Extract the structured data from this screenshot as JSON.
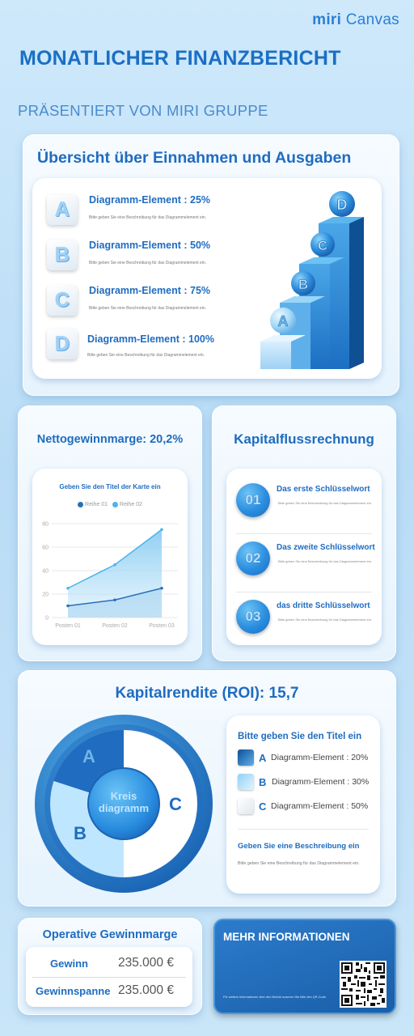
{
  "brand": {
    "prefix": "miri",
    "suffix": "Canvas"
  },
  "header": {
    "title": "MONATLICHER FINANZBERICHT",
    "subtitle": "PRÄSENTIERT VON MIRI GRUPPE"
  },
  "overview": {
    "title": "Übersicht über Einnahmen und Ausgaben",
    "items": [
      {
        "letter": "A",
        "title": "Diagramm-Element : 25%",
        "desc": "Bitte geben Sie eine Beschreibung für das Diagrammelement ein."
      },
      {
        "letter": "B",
        "title": "Diagramm-Element : 50%",
        "desc": "Bitte geben Sie eine Beschreibung für das Diagrammelement ein."
      },
      {
        "letter": "C",
        "title": "Diagramm-Element : 75%",
        "desc": "Bitte geben Sie eine Beschreibung für das Diagrammelement ein."
      },
      {
        "letter": "D",
        "title": "Diagramm-Element : 100%",
        "desc": "Bitte geben Sie eine Beschreibung für das Diagrammelement ein."
      }
    ],
    "stair_letters": [
      "A",
      "B",
      "C",
      "D"
    ]
  },
  "net_margin": {
    "title": "Nettogewinnmarge: 20,2%"
  },
  "chart_data": {
    "type": "area",
    "title": "Geben Sie den Titel der Karte ein",
    "categories": [
      "Posten 01",
      "Posten 02",
      "Posten 03"
    ],
    "series": [
      {
        "name": "Reihe 01",
        "values": [
          10,
          15,
          25
        ],
        "color": "#2a6fb8"
      },
      {
        "name": "Reihe 02",
        "values": [
          25,
          45,
          75
        ],
        "color": "#4fb3e8"
      }
    ],
    "yticks": [
      0,
      20,
      40,
      60,
      80
    ],
    "ylim": [
      0,
      80
    ],
    "grid": true,
    "legend": "top-center"
  },
  "cash_flow": {
    "title": "Kapitalflussrechnung",
    "items": [
      {
        "num": "01",
        "title": "Das erste Schlüsselwort",
        "desc": "Bitte geben Sie eine Beschreibung für das Diagrammelement ein."
      },
      {
        "num": "02",
        "title": "Das zweite Schlüsselwort",
        "desc": "Bitte geben Sie eine Beschreibung für das Diagrammelement ein."
      },
      {
        "num": "03",
        "title": "das dritte Schlüsselwort",
        "desc": "Bitte geben Sie eine Beschreibung für das Diagrammelement ein."
      }
    ]
  },
  "roi": {
    "title": "Kapitalrendite (ROI): 15,7",
    "pie_center": [
      "Kreis",
      "diagramm"
    ],
    "pie_letters": [
      "A",
      "B",
      "C"
    ],
    "legend_title": "Bitte geben Sie den Titel ein",
    "legend": [
      {
        "letter": "A",
        "label": "Diagramm-Element : 20%",
        "value": 20,
        "color": "#1f6cc0"
      },
      {
        "letter": "B",
        "label": "Diagramm-Element : 30%",
        "value": 30,
        "color": "#bfe6ff"
      },
      {
        "letter": "C",
        "label": "Diagramm-Element : 50%",
        "value": 50,
        "color": "#ffffff"
      }
    ],
    "desc_title": "Geben Sie eine Beschreibung ein",
    "desc": "Bitte geben Sie eine Beschreibung für das Diagrammelement ein."
  },
  "operating": {
    "title": "Operative Gewinnmarge",
    "rows": [
      {
        "label": "Gewinn",
        "value": "235.000 €"
      },
      {
        "label": "Gewinnspanne",
        "value": "235.000 €"
      }
    ]
  },
  "more_info": {
    "title": "MEHR INFORMATIONEN",
    "desc": "Für weitere Informationen über den Bericht scannen Sie bitte den QR-Code."
  }
}
